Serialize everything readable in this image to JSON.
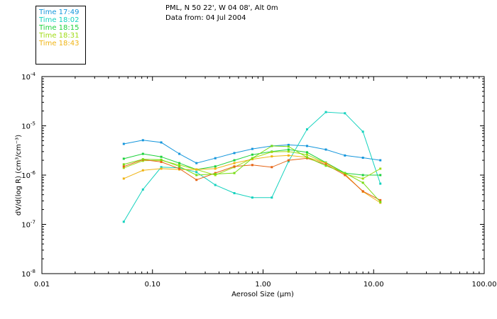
{
  "header": {
    "location": "PML, N 50 22', W 04 08', Alt 0m",
    "date_line": "Data from: 04 Jul 2004"
  },
  "chart_data": {
    "type": "line",
    "title": "PML, N 50 22', W 04 08', Alt 0m",
    "xlabel": "Aerosol Size (µm)",
    "ylabel": "dV/d(log R) (cm³/cm⁻³)",
    "xscale": "log",
    "yscale": "log",
    "xlim": [
      0.01,
      100
    ],
    "ylim": [
      1e-08,
      0.0001
    ],
    "x_ticks": [
      {
        "value": 0.01,
        "label": "0.01"
      },
      {
        "value": 0.1,
        "label": "0.10"
      },
      {
        "value": 1,
        "label": "1.00"
      },
      {
        "value": 10,
        "label": "10.00"
      },
      {
        "value": 100,
        "label": "100.00"
      }
    ],
    "y_ticks": [
      {
        "exp": -8,
        "label": "10",
        "sup": "-8"
      },
      {
        "exp": -7,
        "label": "10",
        "sup": "-7"
      },
      {
        "exp": -6,
        "label": "10",
        "sup": "-6"
      },
      {
        "exp": -5,
        "label": "10",
        "sup": "-5"
      },
      {
        "exp": -4,
        "label": "10",
        "sup": "-4"
      }
    ],
    "legend_position": "top-left",
    "x": [
      0.055,
      0.082,
      0.12,
      0.175,
      0.25,
      0.37,
      0.55,
      0.8,
      1.2,
      1.7,
      2.5,
      3.7,
      5.5,
      8.0,
      11.5
    ],
    "series": [
      {
        "name": "Time 17:49",
        "color": "#1496dc",
        "values": [
          4.3e-06,
          5.1e-06,
          4.6e-06,
          2.7e-06,
          1.75e-06,
          2.2e-06,
          2.8e-06,
          3.4e-06,
          3.9e-06,
          4.1e-06,
          3.9e-06,
          3.3e-06,
          2.5e-06,
          2.25e-06,
          2e-06
        ]
      },
      {
        "name": "Time 18:02",
        "color": "#14d2be",
        "values": [
          1.13e-07,
          5.1e-07,
          1.45e-06,
          1.4e-06,
          1.15e-06,
          6.3e-07,
          4.3e-07,
          3.5e-07,
          3.5e-07,
          1.9e-06,
          8.5e-06,
          1.9e-05,
          1.8e-05,
          7.6e-06,
          6.7e-07
        ]
      },
      {
        "name": "Time 18:15",
        "color": "#1ed23c",
        "values": [
          2.15e-06,
          2.7e-06,
          2.35e-06,
          1.75e-06,
          1.3e-06,
          1.5e-06,
          2e-06,
          2.6e-06,
          3e-06,
          3.3e-06,
          2.9e-06,
          1.8e-06,
          1.1e-06,
          1e-06,
          1e-06
        ]
      },
      {
        "name": "Time 18:31",
        "color": "#a0dc14",
        "values": [
          1.4e-06,
          1.95e-06,
          2e-06,
          1.6e-06,
          1.3e-06,
          1e-06,
          1.45e-06,
          2.2e-06,
          2.95e-06,
          3e-06,
          2.6e-06,
          1.75e-06,
          1.05e-06,
          8.5e-07,
          1.35e-06
        ]
      },
      {
        "name": "Time 18:43",
        "color": "#f0b414",
        "values": [
          8.5e-07,
          1.25e-06,
          1.35e-06,
          1.3e-06,
          1.3e-06,
          1.35e-06,
          1.75e-06,
          2.1e-06,
          2.4e-06,
          2.5e-06,
          2.3e-06,
          1.75e-06,
          1.05e-06,
          4.6e-07,
          2.75e-07
        ]
      }
    ],
    "extra_series": [
      {
        "color": "#e66414",
        "values": [
          1.5e-06,
          2.05e-06,
          1.85e-06,
          1.35e-06,
          8e-07,
          1.1e-06,
          1.5e-06,
          1.6e-06,
          1.45e-06,
          2e-06,
          2.2e-06,
          1.65e-06,
          1e-06,
          4.7e-07,
          3.1e-07
        ]
      },
      {
        "color": "#78dc14",
        "values": [
          1.65e-06,
          2.1e-06,
          2.05e-06,
          1.5e-06,
          1e-06,
          1.05e-06,
          1.1e-06,
          2.2e-06,
          3.9e-06,
          3.8e-06,
          2.3e-06,
          1.55e-06,
          1.1e-06,
          7e-07,
          2.85e-07
        ]
      }
    ]
  }
}
